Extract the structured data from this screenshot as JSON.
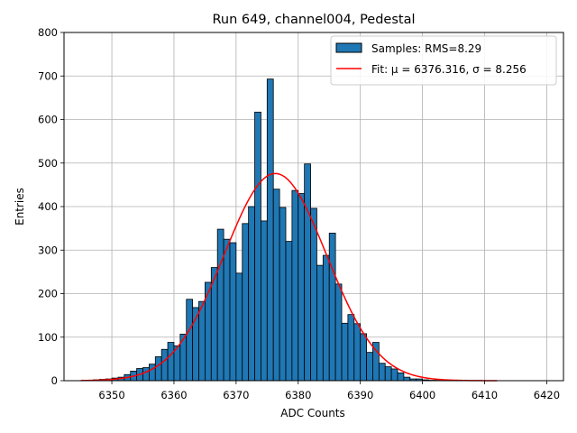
{
  "chart_data": {
    "type": "bar",
    "title": "Run 649, channel004, Pedestal",
    "xlabel": "ADC Counts",
    "ylabel": "Entries",
    "xlim": [
      6342.3,
      6422.7
    ],
    "ylim": [
      0,
      800
    ],
    "xticks": [
      6350,
      6360,
      6370,
      6380,
      6390,
      6400,
      6410,
      6420
    ],
    "yticks": [
      0,
      100,
      200,
      300,
      400,
      500,
      600,
      700,
      800
    ],
    "grid": true,
    "legend_position": "top-right",
    "bin_width": 1,
    "bins": {
      "edges_start": 6345,
      "counts": [
        0,
        0,
        2,
        3,
        4,
        6,
        8,
        14,
        22,
        28,
        30,
        38,
        55,
        72,
        88,
        80,
        107,
        187,
        168,
        182,
        226,
        260,
        348,
        325,
        317,
        247,
        361,
        400,
        617,
        367,
        693,
        440,
        398,
        320,
        437,
        430,
        498,
        396,
        265,
        288,
        339,
        222,
        132,
        152,
        131,
        108,
        65,
        88,
        40,
        32,
        27,
        18,
        8,
        4,
        4,
        2,
        1,
        1,
        0,
        0,
        0,
        0,
        0
      ]
    },
    "fit_curve": {
      "mu": 6376.316,
      "sigma": 8.256,
      "amplitude": 476,
      "x_range": [
        6345,
        6412
      ]
    },
    "colors": {
      "bars": "#1f77b4",
      "bar_edge": "#000000",
      "fit": "#ff0000",
      "grid": "#b0b0b0"
    },
    "legend": [
      {
        "label": "Samples: RMS=8.29",
        "kind": "patch"
      },
      {
        "label": "Fit: μ = 6376.316, σ = 8.256",
        "kind": "line"
      }
    ]
  }
}
